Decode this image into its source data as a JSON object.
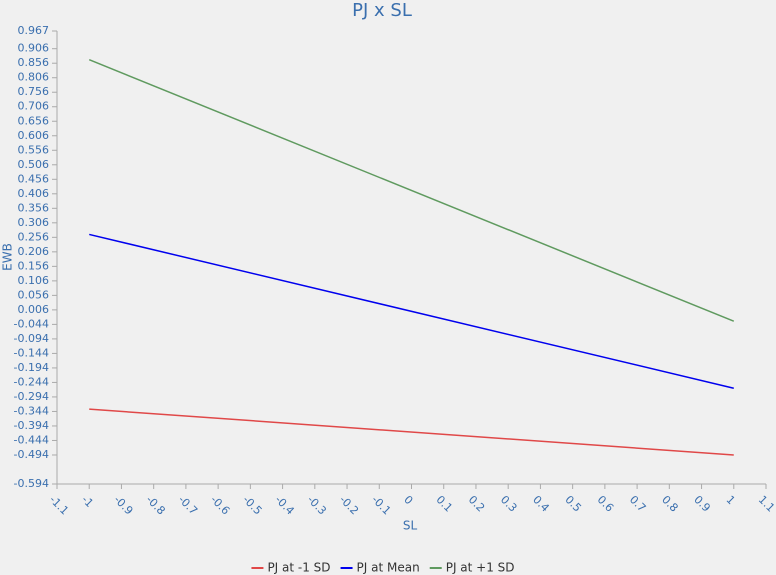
{
  "chart_data": {
    "type": "line",
    "title": "PJ x SL",
    "x_label": "SL",
    "y_label": "EWB",
    "x": [
      -1,
      1
    ],
    "series": [
      {
        "name": "PJ at -1 SD",
        "color": "#e04848",
        "values": [
          -0.336,
          -0.494
        ]
      },
      {
        "name": "PJ at Mean",
        "color": "#0000ee",
        "values": [
          0.266,
          -0.264
        ]
      },
      {
        "name": "PJ at +1 SD",
        "color": "#5f9a5f",
        "values": [
          0.868,
          -0.033
        ]
      }
    ],
    "xlim": [
      -1.1,
      1.1
    ],
    "xticks": [
      -1.1,
      -1,
      -0.9,
      -0.8,
      -0.7,
      -0.6,
      -0.5,
      -0.4,
      -0.3,
      -0.2,
      -0.1,
      0,
      0.1,
      0.2,
      0.3,
      0.4,
      0.5,
      0.6,
      0.7,
      0.8,
      0.9,
      1,
      1.1
    ],
    "ylim": [
      -0.594,
      0.967
    ],
    "yticks": [
      0.967,
      0.906,
      0.856,
      0.806,
      0.756,
      0.706,
      0.656,
      0.606,
      0.556,
      0.506,
      0.456,
      0.406,
      0.356,
      0.306,
      0.256,
      0.206,
      0.156,
      0.106,
      0.056,
      0.006,
      -0.044,
      -0.094,
      -0.144,
      -0.194,
      -0.244,
      -0.294,
      -0.344,
      -0.394,
      -0.444,
      -0.494,
      -0.594
    ],
    "legend": "bottom"
  }
}
